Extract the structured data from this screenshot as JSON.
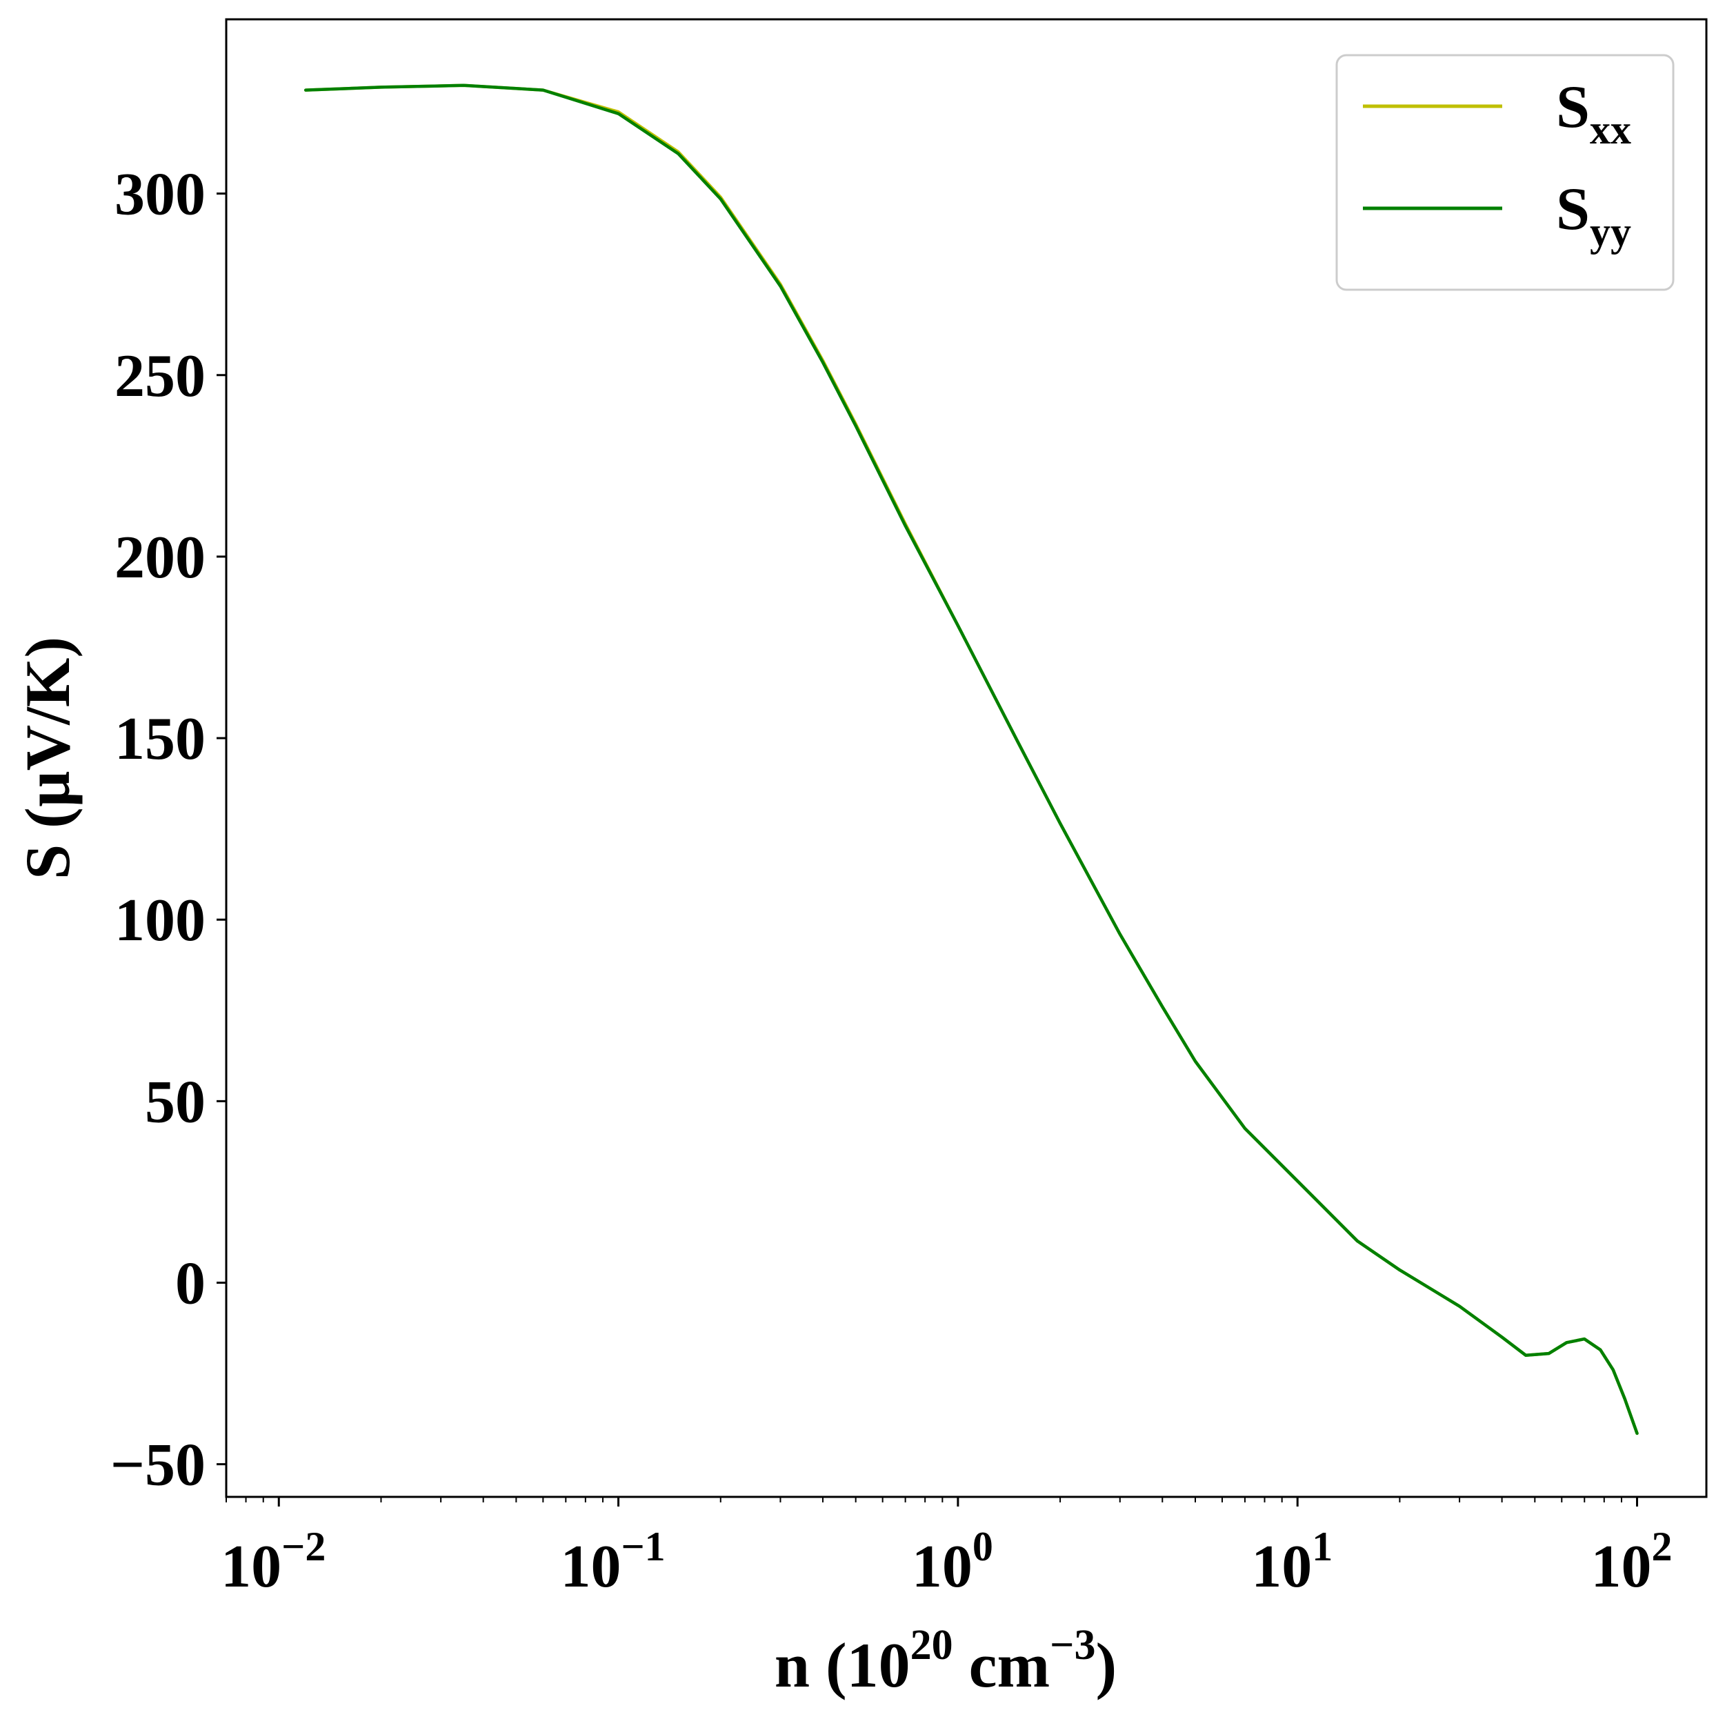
{
  "chart_data": {
    "type": "line",
    "title": "",
    "xlabel": {
      "main": "n (10",
      "exp": "20",
      "unit": " cm",
      "unit_exp": "−3",
      "close": ")"
    },
    "ylabel": "S (µV/K)",
    "xscale": "log",
    "xlim": [
      0.007,
      160
    ],
    "ylim": [
      -59,
      348
    ],
    "x_ticks": [
      {
        "value": 0.01,
        "base": "10",
        "exp": "−2"
      },
      {
        "value": 0.1,
        "base": "10",
        "exp": "−1"
      },
      {
        "value": 1,
        "base": "10",
        "exp": "0"
      },
      {
        "value": 10,
        "base": "10",
        "exp": "1"
      },
      {
        "value": 100,
        "base": "10",
        "exp": "2"
      }
    ],
    "y_ticks": [
      {
        "value": -50,
        "label": "−50"
      },
      {
        "value": 0,
        "label": "0"
      },
      {
        "value": 50,
        "label": "50"
      },
      {
        "value": 100,
        "label": "100"
      },
      {
        "value": 150,
        "label": "150"
      },
      {
        "value": 200,
        "label": "200"
      },
      {
        "value": 250,
        "label": "250"
      },
      {
        "value": 300,
        "label": "300"
      }
    ],
    "grid": false,
    "legend_position": "top-right",
    "series": [
      {
        "name": "S",
        "name_sub": "xx",
        "color": "#bfbf00",
        "x": [
          0.012,
          0.02,
          0.035,
          0.06,
          0.1,
          0.15,
          0.2,
          0.3,
          0.4,
          0.5,
          0.7,
          1.0,
          1.5,
          2.0,
          3.0,
          4.0,
          5.0,
          7.0,
          10.0,
          15.0,
          20.0,
          25.0,
          30.0,
          40.0,
          47.0,
          55.0,
          62.0,
          70.0,
          78.0,
          85.0,
          92.0,
          100.0
        ],
        "y": [
          328.5,
          329.3,
          329.8,
          328.5,
          322.5,
          311.5,
          299.0,
          275.0,
          254.0,
          236.5,
          209.0,
          181.0,
          149.0,
          126.5,
          96.0,
          76.0,
          61.0,
          42.5,
          28.0,
          11.5,
          3.5,
          -2.0,
          -6.5,
          -15.0,
          -20.0,
          -19.5,
          -16.5,
          -15.5,
          -18.5,
          -24.0,
          -32.0,
          -41.5
        ]
      },
      {
        "name": "S",
        "name_sub": "yy",
        "color": "#008000",
        "x": [
          0.012,
          0.02,
          0.035,
          0.06,
          0.1,
          0.15,
          0.2,
          0.3,
          0.4,
          0.5,
          0.7,
          1.0,
          1.5,
          2.0,
          3.0,
          4.0,
          5.0,
          7.0,
          10.0,
          15.0,
          20.0,
          25.0,
          30.0,
          40.0,
          47.0,
          55.0,
          62.0,
          70.0,
          78.0,
          85.0,
          92.0,
          100.0
        ],
        "y": [
          328.5,
          329.3,
          329.8,
          328.5,
          322.0,
          311.0,
          298.5,
          274.5,
          253.5,
          236.0,
          208.5,
          181.0,
          149.0,
          126.5,
          96.0,
          76.0,
          61.0,
          42.5,
          28.0,
          11.5,
          3.5,
          -2.0,
          -6.5,
          -15.0,
          -20.0,
          -19.5,
          -16.5,
          -15.5,
          -18.5,
          -24.0,
          -32.0,
          -41.5
        ]
      }
    ]
  }
}
